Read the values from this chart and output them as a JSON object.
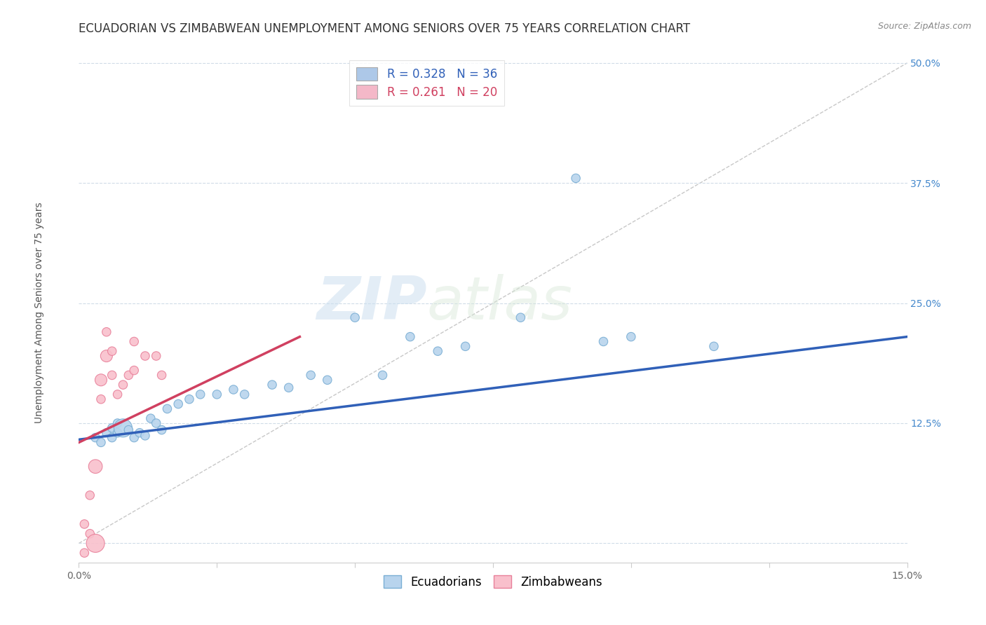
{
  "title": "ECUADORIAN VS ZIMBABWEAN UNEMPLOYMENT AMONG SENIORS OVER 75 YEARS CORRELATION CHART",
  "source": "Source: ZipAtlas.com",
  "xlabel": "",
  "ylabel": "Unemployment Among Seniors over 75 years",
  "xlim": [
    0.0,
    0.15
  ],
  "ylim": [
    -0.02,
    0.52
  ],
  "ytick_positions": [
    0.0,
    0.125,
    0.25,
    0.375,
    0.5
  ],
  "ytick_labels": [
    "",
    "12.5%",
    "25.0%",
    "37.5%",
    "50.0%"
  ],
  "xtick_positions": [
    0.0,
    0.025,
    0.05,
    0.075,
    0.1,
    0.125,
    0.15
  ],
  "xtick_labels": [
    "0.0%",
    "",
    "",
    "",
    "",
    "",
    "15.0%"
  ],
  "background_color": "#ffffff",
  "watermark_zip": "ZIP",
  "watermark_atlas": "atlas",
  "legend_entries": [
    {
      "label": "R = 0.328   N = 36",
      "color": "#adc8e8"
    },
    {
      "label": "R = 0.261   N = 20",
      "color": "#f4b8c8"
    }
  ],
  "ecu_scatter_x": [
    0.003,
    0.004,
    0.005,
    0.006,
    0.006,
    0.007,
    0.007,
    0.008,
    0.009,
    0.01,
    0.011,
    0.012,
    0.013,
    0.014,
    0.015,
    0.016,
    0.018,
    0.02,
    0.022,
    0.025,
    0.028,
    0.03,
    0.035,
    0.038,
    0.042,
    0.045,
    0.05,
    0.055,
    0.06,
    0.065,
    0.07,
    0.08,
    0.09,
    0.095,
    0.1,
    0.115
  ],
  "ecu_scatter_y": [
    0.11,
    0.105,
    0.115,
    0.11,
    0.12,
    0.125,
    0.115,
    0.12,
    0.118,
    0.11,
    0.115,
    0.112,
    0.13,
    0.125,
    0.118,
    0.14,
    0.145,
    0.15,
    0.155,
    0.155,
    0.16,
    0.155,
    0.165,
    0.162,
    0.175,
    0.17,
    0.235,
    0.175,
    0.215,
    0.2,
    0.205,
    0.235,
    0.38,
    0.21,
    0.215,
    0.205
  ],
  "ecu_scatter_sizes": [
    80,
    80,
    80,
    80,
    80,
    80,
    80,
    350,
    80,
    80,
    80,
    80,
    80,
    80,
    80,
    80,
    80,
    80,
    80,
    80,
    80,
    80,
    80,
    80,
    80,
    80,
    80,
    80,
    80,
    80,
    80,
    80,
    80,
    80,
    80,
    80
  ],
  "ecu_color": "#b8d4ed",
  "ecu_edge_color": "#7aaed4",
  "zim_scatter_x": [
    0.001,
    0.001,
    0.002,
    0.002,
    0.003,
    0.003,
    0.004,
    0.004,
    0.005,
    0.005,
    0.006,
    0.006,
    0.007,
    0.008,
    0.009,
    0.01,
    0.01,
    0.012,
    0.014,
    0.015
  ],
  "zim_scatter_y": [
    0.02,
    -0.01,
    0.01,
    0.05,
    0.08,
    0.0,
    0.15,
    0.17,
    0.195,
    0.22,
    0.175,
    0.2,
    0.155,
    0.165,
    0.175,
    0.18,
    0.21,
    0.195,
    0.195,
    0.175
  ],
  "zim_scatter_sizes": [
    80,
    80,
    80,
    80,
    200,
    350,
    80,
    150,
    150,
    80,
    80,
    80,
    80,
    80,
    80,
    80,
    80,
    80,
    80,
    80
  ],
  "zim_color": "#f9c0cc",
  "zim_edge_color": "#e8809a",
  "ecu_trend_x": [
    0.0,
    0.15
  ],
  "ecu_trend_y": [
    0.108,
    0.215
  ],
  "zim_trend_x": [
    0.0,
    0.04
  ],
  "zim_trend_y": [
    0.105,
    0.215
  ],
  "ecu_trend_color": "#3060b8",
  "zim_trend_color": "#d04060",
  "ref_line_x": [
    0.0,
    0.15
  ],
  "ref_line_y": [
    0.0,
    0.5
  ],
  "ref_line_color": "#c8c8c8",
  "grid_color": "#d0dce8",
  "title_fontsize": 12,
  "axis_label_fontsize": 10,
  "tick_fontsize": 10,
  "legend_fontsize": 12
}
